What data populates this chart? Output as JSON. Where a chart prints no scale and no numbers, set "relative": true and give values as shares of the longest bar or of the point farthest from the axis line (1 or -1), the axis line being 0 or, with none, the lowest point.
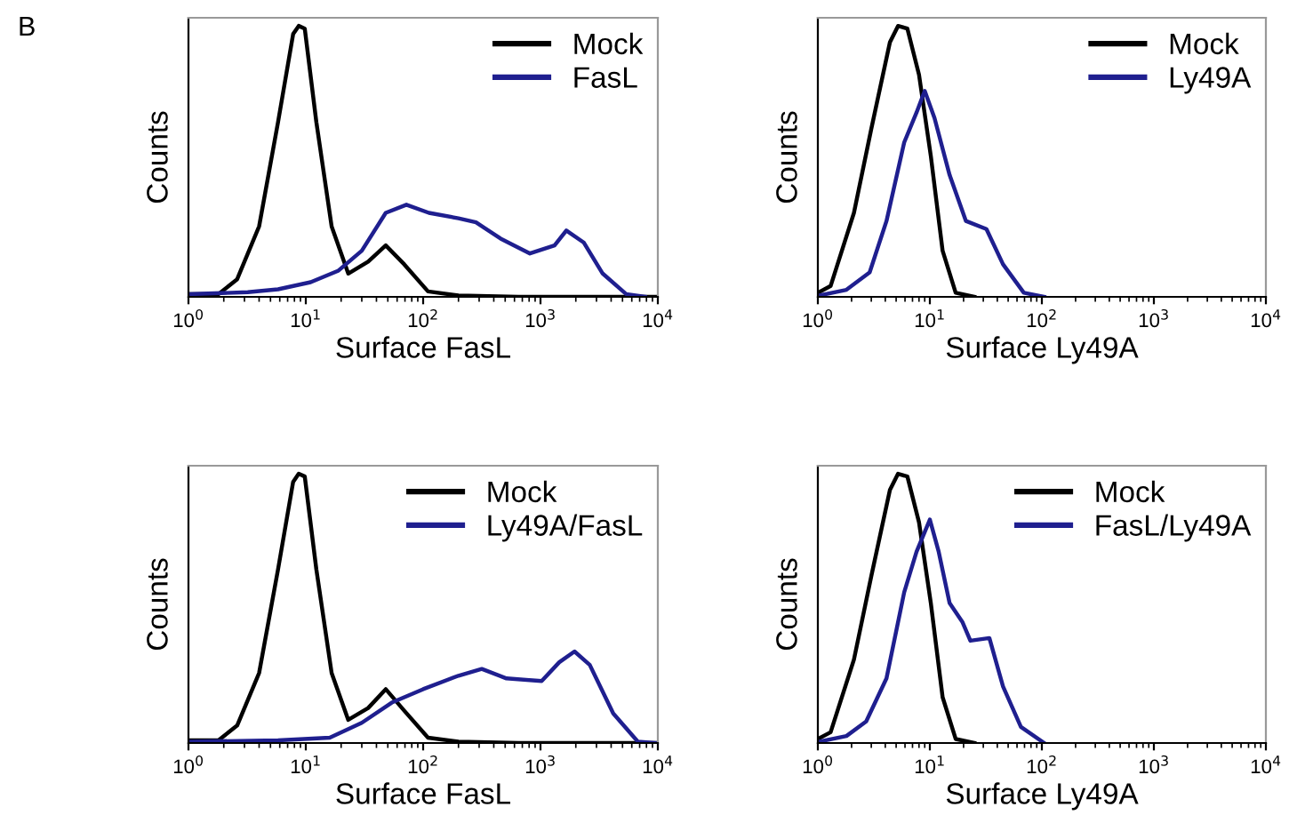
{
  "chart_data": [
    {
      "type": "line",
      "relative": true,
      "ylabel": "Counts",
      "xlabel": "Surface FasL",
      "log": "x",
      "annotations": [
        "B"
      ],
      "legend": "top right",
      "xlim": [
        1,
        10000
      ],
      "xticks": [
        {
          "value": 1,
          "label": "10$^{0}$"
        },
        {
          "value": 10,
          "label": "10$^{1}$"
        },
        {
          "value": 100,
          "label": "10$^{2}$"
        },
        {
          "value": 1000,
          "label": "10$^{3}$"
        },
        {
          "value": 10000,
          "label": "10$^{4}$"
        }
      ],
      "series": [
        {
          "name": "Mock",
          "color": "#000000",
          "x": [
            1,
            1.8,
            2.6,
            4,
            5.8,
            7.8,
            8.7,
            9.8,
            12.3,
            16.6,
            23,
            34,
            48,
            69,
            110,
            200,
            650,
            10000
          ],
          "values": [
            0.01,
            0.01,
            0.065,
            0.26,
            0.645,
            0.97,
            1.0,
            0.99,
            0.645,
            0.26,
            0.086,
            0.13,
            0.19,
            0.12,
            0.02,
            0.005,
            0,
            0
          ]
        },
        {
          "name": "FasL",
          "color": "#1f1f8f",
          "x": [
            1,
            3.2,
            5.8,
            11,
            19,
            30,
            48,
            72,
            112,
            200,
            282,
            457,
            813,
            1318,
            1660,
            2344,
            3388,
            5370,
            7762
          ],
          "values": [
            0.01,
            0.017,
            0.028,
            0.054,
            0.097,
            0.17,
            0.31,
            0.34,
            0.31,
            0.29,
            0.275,
            0.215,
            0.16,
            0.19,
            0.245,
            0.2,
            0.086,
            0.01,
            0
          ]
        }
      ]
    },
    {
      "type": "line",
      "relative": true,
      "ylabel": "Counts",
      "xlabel": "Surface Ly49A",
      "log": "x",
      "legend": "top right",
      "xlim": [
        1,
        10000
      ],
      "xticks": [
        {
          "value": 1,
          "label": "10$^{0}$"
        },
        {
          "value": 10,
          "label": "10$^{1}$"
        },
        {
          "value": 100,
          "label": "10$^{2}$"
        },
        {
          "value": 1000,
          "label": "10$^{3}$"
        },
        {
          "value": 10000,
          "label": "10$^{4}$"
        }
      ],
      "series": [
        {
          "name": "Mock",
          "color": "#000000",
          "x": [
            1,
            1.3,
            2.1,
            3.0,
            4.4,
            5.2,
            6.3,
            8.0,
            10.2,
            13,
            17,
            25
          ],
          "values": [
            0.015,
            0.04,
            0.31,
            0.62,
            0.94,
            1,
            0.99,
            0.82,
            0.52,
            0.17,
            0.015,
            0
          ]
        },
        {
          "name": "Ly49A",
          "color": "#1f1f8f",
          "x": [
            1,
            1.8,
            2.9,
            4.1,
            5.9,
            7.6,
            9,
            11,
            15,
            21,
            32,
            45,
            69,
            105
          ],
          "values": [
            0.004,
            0.026,
            0.09,
            0.28,
            0.57,
            0.68,
            0.76,
            0.66,
            0.45,
            0.28,
            0.25,
            0.12,
            0.015,
            0
          ]
        }
      ]
    },
    {
      "type": "line",
      "relative": true,
      "ylabel": "Counts",
      "xlabel": "Surface FasL",
      "log": "x",
      "legend": "top right",
      "xlim": [
        1,
        10000
      ],
      "xticks": [
        {
          "value": 1,
          "label": "10$^{0}$"
        },
        {
          "value": 10,
          "label": "10$^{1}$"
        },
        {
          "value": 100,
          "label": "10$^{2}$"
        },
        {
          "value": 1000,
          "label": "10$^{3}$"
        },
        {
          "value": 10000,
          "label": "10$^{4}$"
        }
      ],
      "series": [
        {
          "name": "Mock",
          "color": "#000000",
          "x": [
            1,
            1.8,
            2.6,
            4,
            5.8,
            7.8,
            8.7,
            9.8,
            12.3,
            16.6,
            23,
            34,
            48,
            69,
            110,
            200,
            650,
            10000
          ],
          "values": [
            0.01,
            0.01,
            0.065,
            0.26,
            0.645,
            0.97,
            1.0,
            0.99,
            0.645,
            0.26,
            0.086,
            0.13,
            0.2,
            0.12,
            0.02,
            0.005,
            0,
            0
          ]
        },
        {
          "name": "Ly49A/FasL",
          "color": "#1f1f8f",
          "x": [
            1,
            5.8,
            16,
            30,
            54,
            100,
            200,
            316,
            513,
            1023,
            1445,
            1950,
            2630,
            4170,
            6760,
            9550
          ],
          "values": [
            0.005,
            0.01,
            0.02,
            0.075,
            0.15,
            0.2,
            0.25,
            0.275,
            0.24,
            0.23,
            0.3,
            0.34,
            0.29,
            0.11,
            0.005,
            0
          ]
        }
      ]
    },
    {
      "type": "line",
      "relative": true,
      "ylabel": "Counts",
      "xlabel": "Surface Ly49A",
      "log": "x",
      "legend": "top right",
      "xlim": [
        1,
        10000
      ],
      "xticks": [
        {
          "value": 1,
          "label": "10$^{0}$"
        },
        {
          "value": 10,
          "label": "10$^{1}$"
        },
        {
          "value": 100,
          "label": "10$^{2}$"
        },
        {
          "value": 1000,
          "label": "10$^{3}$"
        },
        {
          "value": 10000,
          "label": "10$^{4}$"
        }
      ],
      "series": [
        {
          "name": "Mock",
          "color": "#000000",
          "x": [
            1,
            1.3,
            2.1,
            3.0,
            4.4,
            5.2,
            6.3,
            8.0,
            10.2,
            13,
            17,
            25
          ],
          "values": [
            0.015,
            0.04,
            0.31,
            0.62,
            0.94,
            1,
            0.99,
            0.82,
            0.52,
            0.17,
            0.015,
            0
          ]
        },
        {
          "name": "FasL/Ly49A",
          "color": "#1f1f8f",
          "x": [
            1,
            1.8,
            2.7,
            4.1,
            5.9,
            7.6,
            10,
            12,
            15,
            19.5,
            23,
            34,
            45,
            65,
            105
          ],
          "values": [
            0.004,
            0.026,
            0.08,
            0.24,
            0.56,
            0.71,
            0.83,
            0.71,
            0.52,
            0.45,
            0.38,
            0.39,
            0.21,
            0.06,
            0
          ]
        }
      ]
    }
  ]
}
